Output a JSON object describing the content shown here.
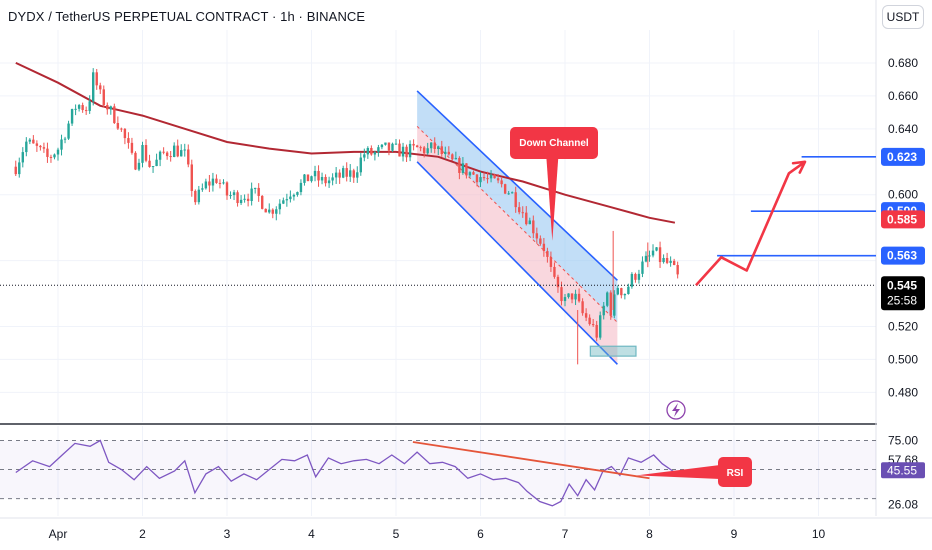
{
  "header": {
    "title": "DYDX / TetherUS PERPETUAL CONTRACT · 1h · BINANCE",
    "currency": "USDT"
  },
  "colors": {
    "bull": "#26a69a",
    "bear": "#ef5350",
    "ma": "#b22833",
    "channel_line": "#2962ff",
    "channel_fill": "#90c2f0",
    "channel_fill_pink": "#f4b6c2",
    "support_box": "#6fb8c2",
    "projection": "#f23645",
    "level_line": "#2962ff",
    "rsi_line": "#7e57c2",
    "rsi_trend": "#e5553a",
    "callout": "#f23645",
    "tag_blue": "#2962ff",
    "tag_red": "#f23645",
    "tag_black": "#000000"
  },
  "chart_data": [
    {
      "type": "candlestick",
      "title": "DYDX / TetherUS PERPETUAL CONTRACT · 1h · BINANCE",
      "x_ticks": [
        "Apr",
        "2",
        "3",
        "4",
        "5",
        "6",
        "7",
        "8",
        "9",
        "10"
      ],
      "x_range_days": [
        0.5,
        10.6
      ],
      "ylim": [
        0.462,
        0.7
      ],
      "y_ticks": [
        0.48,
        0.5,
        0.52,
        0.56,
        0.6,
        0.64,
        0.66,
        0.68
      ],
      "grid": true,
      "price_path": [
        [
          0.5,
          0.617
        ],
        [
          0.62,
          0.632
        ],
        [
          0.75,
          0.628
        ],
        [
          0.88,
          0.622
        ],
        [
          1.0,
          0.628
        ],
        [
          1.1,
          0.64
        ],
        [
          1.22,
          0.655
        ],
        [
          1.35,
          0.652
        ],
        [
          1.42,
          0.672
        ],
        [
          1.5,
          0.66
        ],
        [
          1.6,
          0.652
        ],
        [
          1.7,
          0.645
        ],
        [
          1.82,
          0.63
        ],
        [
          1.9,
          0.618
        ],
        [
          2.0,
          0.628
        ],
        [
          2.1,
          0.616
        ],
        [
          2.25,
          0.625
        ],
        [
          2.38,
          0.628
        ],
        [
          2.5,
          0.624
        ],
        [
          2.62,
          0.596
        ],
        [
          2.75,
          0.606
        ],
        [
          2.88,
          0.61
        ],
        [
          3.0,
          0.6
        ],
        [
          3.1,
          0.599
        ],
        [
          3.22,
          0.6
        ],
        [
          3.35,
          0.6
        ],
        [
          3.5,
          0.59
        ],
        [
          3.62,
          0.595
        ],
        [
          3.75,
          0.602
        ],
        [
          3.88,
          0.606
        ],
        [
          4.0,
          0.612
        ],
        [
          4.12,
          0.608
        ],
        [
          4.25,
          0.609
        ],
        [
          4.38,
          0.612
        ],
        [
          4.5,
          0.613
        ],
        [
          4.62,
          0.625
        ],
        [
          4.75,
          0.625
        ],
        [
          4.88,
          0.628
        ],
        [
          5.0,
          0.627
        ],
        [
          5.12,
          0.626
        ],
        [
          5.25,
          0.628
        ],
        [
          5.38,
          0.627
        ],
        [
          5.45,
          0.629
        ],
        [
          5.62,
          0.621
        ],
        [
          5.75,
          0.617
        ],
        [
          5.88,
          0.613
        ],
        [
          6.0,
          0.611
        ],
        [
          6.12,
          0.608
        ],
        [
          6.25,
          0.606
        ],
        [
          6.38,
          0.6
        ],
        [
          6.5,
          0.59
        ],
        [
          6.62,
          0.58
        ],
        [
          6.75,
          0.568
        ],
        [
          6.88,
          0.545
        ],
        [
          7.0,
          0.535
        ],
        [
          7.1,
          0.54
        ],
        [
          7.2,
          0.528
        ],
        [
          7.3,
          0.522
        ],
        [
          7.38,
          0.515
        ],
        [
          7.45,
          0.53
        ],
        [
          7.5,
          0.54
        ],
        [
          7.55,
          0.528
        ],
        [
          7.62,
          0.545
        ],
        [
          7.7,
          0.54
        ],
        [
          7.78,
          0.548
        ],
        [
          7.88,
          0.555
        ],
        [
          8.0,
          0.562
        ],
        [
          8.05,
          0.566
        ],
        [
          8.12,
          0.561
        ],
        [
          8.25,
          0.557
        ],
        [
          8.35,
          0.548
        ]
      ],
      "moving_average": [
        [
          0.5,
          0.68
        ],
        [
          1.0,
          0.668
        ],
        [
          1.5,
          0.654
        ],
        [
          2.0,
          0.648
        ],
        [
          2.5,
          0.64
        ],
        [
          3.0,
          0.632
        ],
        [
          3.5,
          0.628
        ],
        [
          4.0,
          0.625
        ],
        [
          4.5,
          0.626
        ],
        [
          5.0,
          0.626
        ],
        [
          5.5,
          0.623
        ],
        [
          6.0,
          0.614
        ],
        [
          6.5,
          0.608
        ],
        [
          7.0,
          0.6
        ],
        [
          7.5,
          0.593
        ],
        [
          8.0,
          0.586
        ],
        [
          8.3,
          0.583
        ]
      ],
      "current_price": "0.545",
      "countdown": "25:58",
      "price_tags": [
        {
          "value": "0.623",
          "style": "blue"
        },
        {
          "value": "0.590",
          "style": "blue"
        },
        {
          "value": "0.585",
          "style": "red"
        },
        {
          "value": "0.563",
          "style": "blue"
        }
      ],
      "horizontal_levels": [
        {
          "value": 0.623,
          "from_day": 9.8
        },
        {
          "value": 0.59,
          "from_day": 9.2
        },
        {
          "value": 0.563,
          "from_day": 8.8
        }
      ],
      "channel": {
        "upper": [
          [
            5.25,
            0.663
          ],
          [
            7.62,
            0.548
          ]
        ],
        "lower": [
          [
            5.25,
            0.62
          ],
          [
            7.62,
            0.497
          ]
        ]
      },
      "support_zone": {
        "x": [
          7.3,
          7.84
        ],
        "y": [
          0.502,
          0.508
        ]
      },
      "projection_path": [
        [
          8.55,
          0.545
        ],
        [
          8.85,
          0.562
        ],
        [
          9.15,
          0.554
        ],
        [
          9.65,
          0.613
        ],
        [
          9.84,
          0.62
        ]
      ],
      "annotations": [
        {
          "text": "Down Channel",
          "anchor_day": 6.85,
          "anchor_value": 0.572
        }
      ]
    },
    {
      "type": "line",
      "title": "RSI",
      "ylim": [
        18,
        80
      ],
      "y_ticks": [
        "75.00",
        "57.68",
        "45.55",
        "26.08"
      ],
      "levels": [
        70,
        50,
        30
      ],
      "series": [
        {
          "name": "RSI",
          "values": [
            [
              0.5,
              48
            ],
            [
              0.7,
              56
            ],
            [
              0.9,
              52
            ],
            [
              1.05,
              60
            ],
            [
              1.2,
              68
            ],
            [
              1.38,
              66
            ],
            [
              1.5,
              70
            ],
            [
              1.6,
              55
            ],
            [
              1.75,
              50
            ],
            [
              1.9,
              43
            ],
            [
              2.05,
              52
            ],
            [
              2.2,
              44
            ],
            [
              2.38,
              49
            ],
            [
              2.5,
              56
            ],
            [
              2.62,
              34
            ],
            [
              2.75,
              47
            ],
            [
              2.9,
              52
            ],
            [
              3.05,
              42
            ],
            [
              3.2,
              47
            ],
            [
              3.35,
              43
            ],
            [
              3.5,
              50
            ],
            [
              3.65,
              57
            ],
            [
              3.8,
              56
            ],
            [
              3.95,
              60
            ],
            [
              4.05,
              45
            ],
            [
              4.2,
              58
            ],
            [
              4.35,
              54
            ],
            [
              4.5,
              56
            ],
            [
              4.65,
              57
            ],
            [
              4.8,
              54
            ],
            [
              4.95,
              60
            ],
            [
              5.1,
              54
            ],
            [
              5.25,
              62
            ],
            [
              5.4,
              54
            ],
            [
              5.55,
              55
            ],
            [
              5.7,
              52
            ],
            [
              5.85,
              44
            ],
            [
              6.0,
              47
            ],
            [
              6.15,
              43
            ],
            [
              6.3,
              44
            ],
            [
              6.45,
              41
            ],
            [
              6.55,
              35
            ],
            [
              6.7,
              28
            ],
            [
              6.85,
              25
            ],
            [
              6.95,
              28
            ],
            [
              7.05,
              40
            ],
            [
              7.15,
              32
            ],
            [
              7.25,
              43
            ],
            [
              7.35,
              36
            ],
            [
              7.45,
              49
            ],
            [
              7.55,
              52
            ],
            [
              7.65,
              46
            ],
            [
              7.75,
              58
            ],
            [
              7.9,
              55
            ],
            [
              8.05,
              60
            ],
            [
              8.15,
              54
            ],
            [
              8.3,
              48
            ]
          ]
        }
      ],
      "trend_line": [
        [
          5.2,
          69
        ],
        [
          8.0,
          44
        ]
      ],
      "annotations": [
        {
          "text": "RSI"
        }
      ]
    }
  ]
}
